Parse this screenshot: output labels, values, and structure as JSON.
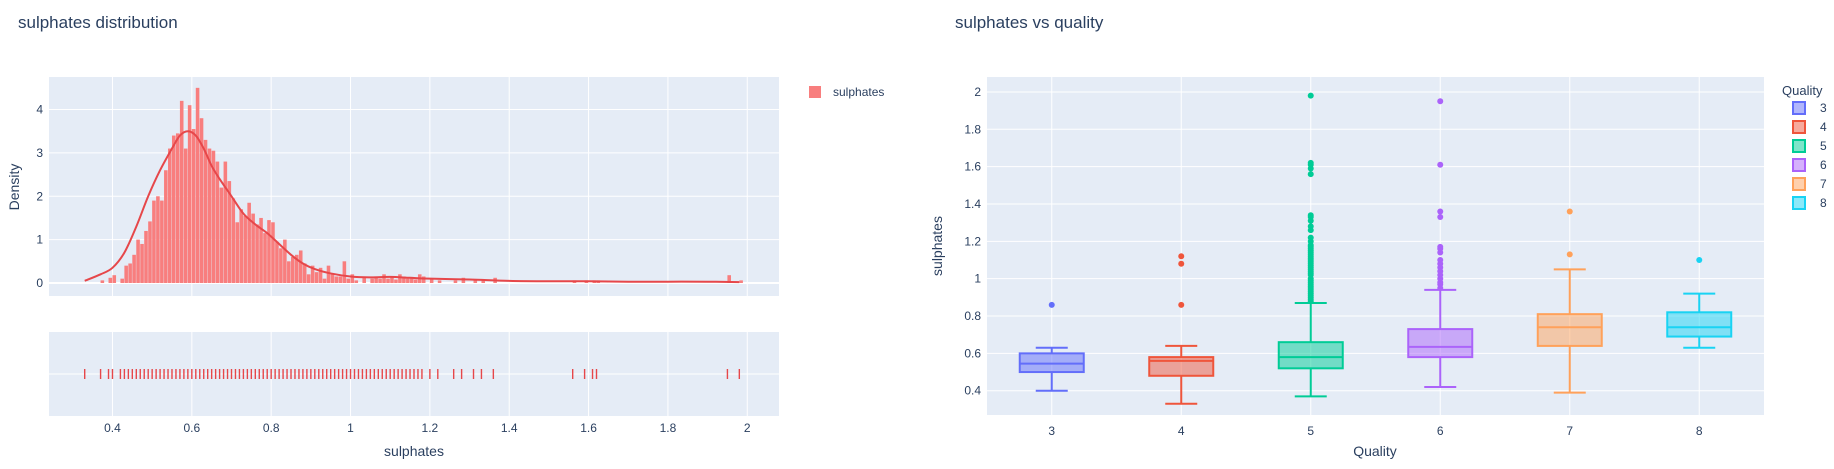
{
  "colors": {
    "plot_bg": "#E5ECF6",
    "grid": "#FFFFFF",
    "text": "#2a3f5f",
    "hist_fill": "#F87E7E",
    "kde_line": "#E6474A",
    "quality_colors": [
      "#636EFA",
      "#EF553B",
      "#00CC96",
      "#AB63FA",
      "#FFA15A",
      "#19D3F3"
    ]
  },
  "chart_data": [
    {
      "type": "histogram",
      "title": "sulphates distribution",
      "xlabel": "sulphates",
      "ylabel": "Density",
      "xlim": [
        0.24,
        2.08
      ],
      "ylim": [
        -0.3,
        4.75
      ],
      "x_ticks": [
        0.4,
        0.6,
        0.8,
        1,
        1.2,
        1.4,
        1.6,
        1.8,
        2
      ],
      "x_tick_labels": [
        "0.4",
        "0.6",
        "0.8",
        "1",
        "1.2",
        "1.4",
        "1.6",
        "1.8",
        "2"
      ],
      "y_ticks": [
        0,
        1,
        2,
        3,
        4
      ],
      "y_tick_labels": [
        "0",
        "1",
        "2",
        "3",
        "4"
      ],
      "grid": true,
      "legend": {
        "position": "top-right",
        "entries": [
          "sulphates"
        ]
      },
      "bin_width": 0.01,
      "bins": [
        [
          0.37,
          0.06
        ],
        [
          0.39,
          0.12
        ],
        [
          0.4,
          0.18
        ],
        [
          0.42,
          0.1
        ],
        [
          0.43,
          0.4
        ],
        [
          0.44,
          0.45
        ],
        [
          0.45,
          0.65
        ],
        [
          0.46,
          1.0
        ],
        [
          0.47,
          0.9
        ],
        [
          0.48,
          1.2
        ],
        [
          0.49,
          1.42
        ],
        [
          0.5,
          1.9
        ],
        [
          0.51,
          2.0
        ],
        [
          0.52,
          1.9
        ],
        [
          0.53,
          2.6
        ],
        [
          0.54,
          3.1
        ],
        [
          0.55,
          3.4
        ],
        [
          0.56,
          3.45
        ],
        [
          0.57,
          4.2
        ],
        [
          0.58,
          3.1
        ],
        [
          0.59,
          4.1
        ],
        [
          0.6,
          3.55
        ],
        [
          0.61,
          4.5
        ],
        [
          0.62,
          3.8
        ],
        [
          0.63,
          3.3
        ],
        [
          0.64,
          3.1
        ],
        [
          0.65,
          3.05
        ],
        [
          0.66,
          2.8
        ],
        [
          0.67,
          2.2
        ],
        [
          0.68,
          2.8
        ],
        [
          0.69,
          2.35
        ],
        [
          0.7,
          1.95
        ],
        [
          0.71,
          1.4
        ],
        [
          0.72,
          1.7
        ],
        [
          0.73,
          1.55
        ],
        [
          0.74,
          1.85
        ],
        [
          0.75,
          1.6
        ],
        [
          0.76,
          1.35
        ],
        [
          0.77,
          1.5
        ],
        [
          0.78,
          1.15
        ],
        [
          0.79,
          1.45
        ],
        [
          0.8,
          1.4
        ],
        [
          0.81,
          0.95
        ],
        [
          0.82,
          0.8
        ],
        [
          0.83,
          1.0
        ],
        [
          0.84,
          0.5
        ],
        [
          0.85,
          0.6
        ],
        [
          0.86,
          0.65
        ],
        [
          0.87,
          0.75
        ],
        [
          0.88,
          0.45
        ],
        [
          0.89,
          0.2
        ],
        [
          0.9,
          0.4
        ],
        [
          0.91,
          0.25
        ],
        [
          0.92,
          0.35
        ],
        [
          0.93,
          0.1
        ],
        [
          0.94,
          0.4
        ],
        [
          0.95,
          0.2
        ],
        [
          0.96,
          0.15
        ],
        [
          0.97,
          0.15
        ],
        [
          0.98,
          0.5
        ],
        [
          0.99,
          0.1
        ],
        [
          1.0,
          0.2
        ],
        [
          1.01,
          0.06
        ],
        [
          1.03,
          0.12
        ],
        [
          1.05,
          0.1
        ],
        [
          1.06,
          0.15
        ],
        [
          1.07,
          0.1
        ],
        [
          1.08,
          0.2
        ],
        [
          1.09,
          0.1
        ],
        [
          1.1,
          0.15
        ],
        [
          1.11,
          0.08
        ],
        [
          1.12,
          0.2
        ],
        [
          1.13,
          0.15
        ],
        [
          1.14,
          0.1
        ],
        [
          1.15,
          0.12
        ],
        [
          1.16,
          0.08
        ],
        [
          1.17,
          0.2
        ],
        [
          1.18,
          0.15
        ],
        [
          1.2,
          0.1
        ],
        [
          1.22,
          0.06
        ],
        [
          1.26,
          0.06
        ],
        [
          1.28,
          0.12
        ],
        [
          1.31,
          0.08
        ],
        [
          1.33,
          0.06
        ],
        [
          1.36,
          0.12
        ],
        [
          1.56,
          0.06
        ],
        [
          1.59,
          0.06
        ],
        [
          1.61,
          0.06
        ],
        [
          1.62,
          0.06
        ],
        [
          1.95,
          0.18
        ],
        [
          1.98,
          0.06
        ]
      ],
      "kde": {
        "x": [
          0.33,
          0.37,
          0.4,
          0.43,
          0.46,
          0.49,
          0.52,
          0.55,
          0.57,
          0.59,
          0.61,
          0.63,
          0.65,
          0.67,
          0.7,
          0.73,
          0.76,
          0.79,
          0.82,
          0.85,
          0.88,
          0.91,
          0.95,
          1.0,
          1.05,
          1.1,
          1.15,
          1.2,
          1.3,
          1.4,
          1.5,
          1.6,
          1.7,
          1.8,
          1.9,
          1.98
        ],
        "y": [
          0.05,
          0.2,
          0.35,
          0.7,
          1.3,
          2.0,
          2.6,
          3.1,
          3.4,
          3.5,
          3.4,
          3.1,
          2.7,
          2.4,
          2.0,
          1.6,
          1.35,
          1.15,
          0.9,
          0.65,
          0.45,
          0.32,
          0.22,
          0.15,
          0.13,
          0.14,
          0.12,
          0.1,
          0.08,
          0.05,
          0.04,
          0.04,
          0.03,
          0.03,
          0.03,
          0.02
        ]
      },
      "rug": [
        0.33,
        0.37,
        0.39,
        0.4,
        0.42,
        0.43,
        0.44,
        0.45,
        0.46,
        0.47,
        0.48,
        0.49,
        0.5,
        0.51,
        0.52,
        0.53,
        0.54,
        0.55,
        0.56,
        0.57,
        0.58,
        0.59,
        0.6,
        0.61,
        0.62,
        0.63,
        0.64,
        0.65,
        0.66,
        0.67,
        0.68,
        0.69,
        0.7,
        0.71,
        0.72,
        0.73,
        0.74,
        0.75,
        0.76,
        0.77,
        0.78,
        0.79,
        0.8,
        0.81,
        0.82,
        0.83,
        0.84,
        0.85,
        0.86,
        0.87,
        0.88,
        0.89,
        0.9,
        0.91,
        0.92,
        0.93,
        0.94,
        0.95,
        0.96,
        0.97,
        0.98,
        0.99,
        1.0,
        1.01,
        1.02,
        1.03,
        1.04,
        1.05,
        1.06,
        1.07,
        1.08,
        1.09,
        1.1,
        1.11,
        1.12,
        1.13,
        1.14,
        1.15,
        1.16,
        1.17,
        1.18,
        1.2,
        1.22,
        1.26,
        1.28,
        1.31,
        1.33,
        1.36,
        1.56,
        1.59,
        1.61,
        1.62,
        1.95,
        1.98
      ]
    },
    {
      "type": "box",
      "title": "sulphates vs quality",
      "xlabel": "Quality",
      "ylabel": "sulphates",
      "categories": [
        "3",
        "4",
        "5",
        "6",
        "7",
        "8"
      ],
      "ylim": [
        0.27,
        2.08
      ],
      "y_ticks": [
        0.4,
        0.6,
        0.8,
        1,
        1.2,
        1.4,
        1.6,
        1.8,
        2
      ],
      "y_tick_labels": [
        "0.4",
        "0.6",
        "0.8",
        "1",
        "1.2",
        "1.4",
        "1.6",
        "1.8",
        "2"
      ],
      "grid": true,
      "legend": {
        "title": "Quality",
        "position": "top-right"
      },
      "series": [
        {
          "name": "3",
          "min": 0.4,
          "q1": 0.5,
          "median": 0.545,
          "q3": 0.6,
          "max": 0.63,
          "outliers": [
            0.86
          ]
        },
        {
          "name": "4",
          "min": 0.33,
          "q1": 0.48,
          "median": 0.56,
          "q3": 0.58,
          "max": 0.64,
          "outliers": [
            0.86,
            1.08,
            1.12
          ]
        },
        {
          "name": "5",
          "min": 0.37,
          "q1": 0.52,
          "median": 0.58,
          "q3": 0.66,
          "max": 0.87,
          "outliers": [
            0.88,
            0.89,
            0.9,
            0.91,
            0.92,
            0.93,
            0.94,
            0.95,
            0.96,
            0.97,
            0.98,
            0.99,
            1.0,
            1.02,
            1.03,
            1.04,
            1.05,
            1.06,
            1.07,
            1.08,
            1.09,
            1.1,
            1.11,
            1.12,
            1.13,
            1.14,
            1.15,
            1.16,
            1.17,
            1.18,
            1.2,
            1.22,
            1.26,
            1.28,
            1.31,
            1.33,
            1.34,
            1.56,
            1.59,
            1.61,
            1.62,
            1.98
          ]
        },
        {
          "name": "6",
          "min": 0.42,
          "q1": 0.58,
          "median": 0.635,
          "q3": 0.73,
          "max": 0.94,
          "outliers": [
            0.95,
            0.97,
            0.98,
            1.0,
            1.02,
            1.04,
            1.06,
            1.08,
            1.1,
            1.14,
            1.16,
            1.17,
            1.33,
            1.36,
            1.61,
            1.95
          ]
        },
        {
          "name": "7",
          "min": 0.39,
          "q1": 0.64,
          "median": 0.74,
          "q3": 0.81,
          "max": 1.05,
          "outliers": [
            1.13,
            1.36
          ]
        },
        {
          "name": "8",
          "min": 0.63,
          "q1": 0.69,
          "median": 0.74,
          "q3": 0.82,
          "max": 0.92,
          "outliers": [
            1.1
          ]
        }
      ]
    }
  ]
}
